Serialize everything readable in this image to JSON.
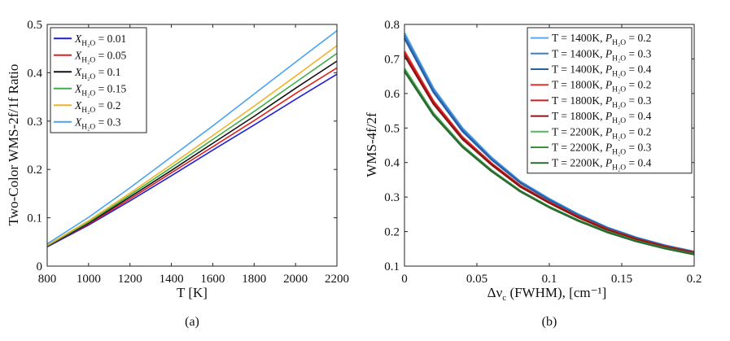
{
  "chart_data": [
    {
      "type": "line",
      "caption": "(a)",
      "xlabel": "T [K]",
      "ylabel": "Two-Color WMS-2f/1f Ratio",
      "xlim": [
        800,
        2200
      ],
      "ylim": [
        0,
        0.5
      ],
      "xticks": [
        800,
        1000,
        1200,
        1400,
        1600,
        1800,
        2000,
        2200
      ],
      "yticks": [
        0,
        0.1,
        0.2,
        0.3,
        0.4,
        0.5
      ],
      "xtick_labels": [
        "800",
        "1000",
        "1200",
        "1400",
        "1600",
        "1800",
        "2000",
        "2200"
      ],
      "ytick_labels": [
        "0",
        "0.1",
        "0.2",
        "0.3",
        "0.4",
        "0.5"
      ],
      "legend_position": "top-left",
      "x": [
        800,
        1000,
        1200,
        1400,
        1600,
        1800,
        2000,
        2200
      ],
      "series": [
        {
          "legend_prefix": "X",
          "legend_sub": "H₂O",
          "legend_value": "= 0.01",
          "color": "#1f1fd6",
          "values": [
            0.04,
            0.085,
            0.135,
            0.187,
            0.24,
            0.292,
            0.345,
            0.397
          ]
        },
        {
          "legend_prefix": "X",
          "legend_sub": "H₂O",
          "legend_value": "= 0.05",
          "color": "#e02020",
          "values": [
            0.041,
            0.087,
            0.139,
            0.193,
            0.247,
            0.301,
            0.357,
            0.41
          ]
        },
        {
          "legend_prefix": "X",
          "legend_sub": "H₂O",
          "legend_value": "= 0.1",
          "color": "#111111",
          "values": [
            0.041,
            0.089,
            0.143,
            0.198,
            0.254,
            0.31,
            0.368,
            0.424
          ]
        },
        {
          "legend_prefix": "X",
          "legend_sub": "H₂O",
          "legend_value": "= 0.15",
          "color": "#3fae49",
          "values": [
            0.042,
            0.091,
            0.147,
            0.204,
            0.262,
            0.32,
            0.38,
            0.44
          ]
        },
        {
          "legend_prefix": "X",
          "legend_sub": "H₂O",
          "legend_value": "= 0.2",
          "color": "#f2b328",
          "values": [
            0.043,
            0.094,
            0.151,
            0.21,
            0.27,
            0.331,
            0.393,
            0.456
          ]
        },
        {
          "legend_prefix": "X",
          "legend_sub": "H₂O",
          "legend_value": "= 0.3",
          "color": "#4aa3f0",
          "values": [
            0.046,
            0.101,
            0.162,
            0.226,
            0.29,
            0.356,
            0.422,
            0.487
          ]
        }
      ]
    },
    {
      "type": "line",
      "caption": "(b)",
      "xlabel": "Δν (FWHM), [cm⁻¹]",
      "xlabel_sub": "c",
      "ylabel": "WMS-4f/2f",
      "xlim": [
        0,
        0.2
      ],
      "ylim": [
        0.1,
        0.8
      ],
      "xticks": [
        0,
        0.05,
        0.1,
        0.15,
        0.2
      ],
      "yticks": [
        0.1,
        0.2,
        0.3,
        0.4,
        0.5,
        0.6,
        0.7,
        0.8
      ],
      "xtick_labels": [
        "0",
        "0.05",
        "0.1",
        "0.15",
        "0.2"
      ],
      "ytick_labels": [
        "0.1",
        "0.2",
        "0.3",
        "0.4",
        "0.5",
        "0.6",
        "0.7",
        "0.8"
      ],
      "legend_position": "top-right",
      "x": [
        0,
        0.02,
        0.04,
        0.06,
        0.08,
        0.1,
        0.12,
        0.14,
        0.16,
        0.18,
        0.2
      ],
      "series": [
        {
          "legend_prefix": "T = 1400K, P",
          "legend_sub": "H₂O",
          "legend_value": "= 0.2",
          "color": "#5aa9ee",
          "values": [
            0.775,
            0.615,
            0.5,
            0.415,
            0.345,
            0.295,
            0.25,
            0.212,
            0.183,
            0.16,
            0.142
          ]
        },
        {
          "legend_prefix": "T = 1400K, P",
          "legend_sub": "H₂O",
          "legend_value": "= 0.3",
          "color": "#3b7fc9",
          "values": [
            0.768,
            0.61,
            0.496,
            0.412,
            0.343,
            0.293,
            0.249,
            0.211,
            0.182,
            0.159,
            0.141
          ]
        },
        {
          "legend_prefix": "T = 1400K, P",
          "legend_sub": "H₂O",
          "legend_value": "= 0.4",
          "color": "#2a5fa3",
          "values": [
            0.76,
            0.604,
            0.491,
            0.409,
            0.341,
            0.291,
            0.247,
            0.21,
            0.181,
            0.159,
            0.141
          ]
        },
        {
          "legend_prefix": "T = 1800K, P",
          "legend_sub": "H₂O",
          "legend_value": "= 0.2",
          "color": "#e8302a",
          "values": [
            0.722,
            0.578,
            0.474,
            0.398,
            0.333,
            0.285,
            0.243,
            0.207,
            0.179,
            0.157,
            0.139
          ]
        },
        {
          "legend_prefix": "T = 1800K, P",
          "legend_sub": "H₂O",
          "legend_value": "= 0.3",
          "color": "#c81e1e",
          "values": [
            0.716,
            0.574,
            0.471,
            0.396,
            0.332,
            0.284,
            0.242,
            0.206,
            0.178,
            0.156,
            0.139
          ]
        },
        {
          "legend_prefix": "T = 1800K, P",
          "legend_sub": "H₂O",
          "legend_value": "= 0.4",
          "color": "#8e1515",
          "values": [
            0.71,
            0.57,
            0.468,
            0.394,
            0.33,
            0.283,
            0.241,
            0.205,
            0.178,
            0.156,
            0.138
          ]
        },
        {
          "legend_prefix": "T = 2200K, P",
          "legend_sub": "H₂O",
          "legend_value": "= 0.2",
          "color": "#53b95e",
          "values": [
            0.672,
            0.543,
            0.449,
            0.378,
            0.318,
            0.272,
            0.233,
            0.2,
            0.173,
            0.152,
            0.135
          ]
        },
        {
          "legend_prefix": "T = 2200K, P",
          "legend_sub": "H₂O",
          "legend_value": "= 0.3",
          "color": "#3a8f3f",
          "values": [
            0.668,
            0.54,
            0.447,
            0.377,
            0.317,
            0.271,
            0.232,
            0.199,
            0.172,
            0.151,
            0.134
          ]
        },
        {
          "legend_prefix": "T = 2200K, P",
          "legend_sub": "H₂O",
          "legend_value": "= 0.4",
          "color": "#2a6a30",
          "values": [
            0.664,
            0.537,
            0.445,
            0.375,
            0.316,
            0.27,
            0.231,
            0.198,
            0.172,
            0.151,
            0.134
          ]
        }
      ]
    }
  ]
}
